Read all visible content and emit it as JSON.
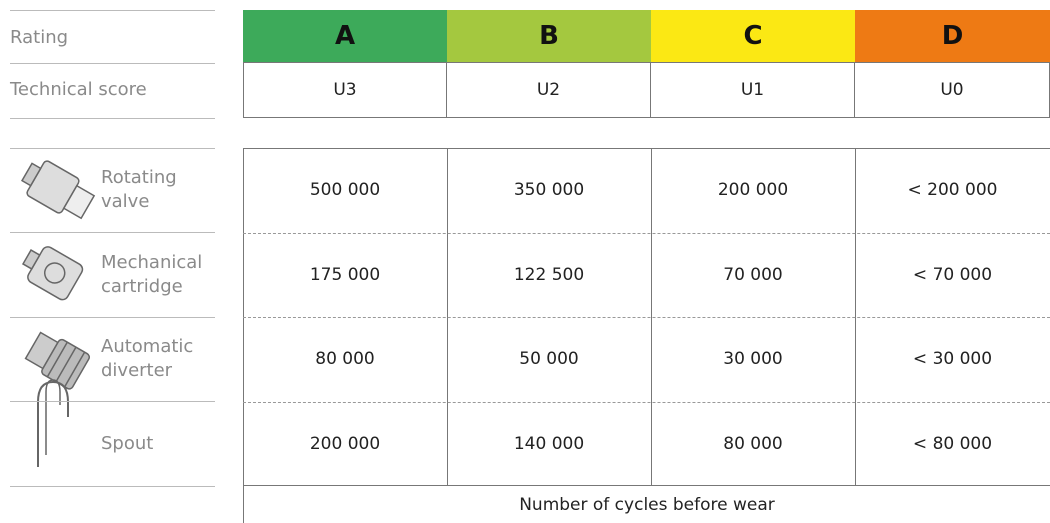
{
  "header": {
    "rating_label": "Rating",
    "score_label": "Technical score"
  },
  "ratings": [
    {
      "grade": "A",
      "score": "U3",
      "color": "#3daa5a"
    },
    {
      "grade": "B",
      "score": "U2",
      "color": "#a4c83f"
    },
    {
      "grade": "C",
      "score": "U1",
      "color": "#fbe814"
    },
    {
      "grade": "D",
      "score": "U0",
      "color": "#ee7a14"
    }
  ],
  "rows": [
    {
      "label_lines": [
        "Rotating",
        "valve"
      ],
      "values": [
        "500 000",
        "350 000",
        "200 000",
        "< 200 000"
      ]
    },
    {
      "label_lines": [
        "Mechanical",
        "cartridge"
      ],
      "values": [
        "175 000",
        "122 500",
        "70 000",
        "< 70 000"
      ]
    },
    {
      "label_lines": [
        "Automatic",
        "diverter"
      ],
      "values": [
        "80 000",
        "50 000",
        "30 000",
        "< 30 000"
      ]
    },
    {
      "label_lines": [
        "Spout"
      ],
      "values": [
        "200 000",
        "140 000",
        "80 000",
        "< 80 000"
      ]
    }
  ],
  "footer": "Number of cycles before wear"
}
